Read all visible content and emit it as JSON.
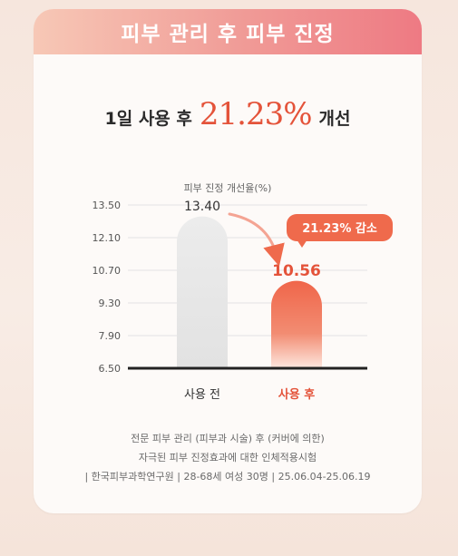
{
  "banner": {
    "title": "피부 관리 후 피부 진정"
  },
  "headline": {
    "prefix": "1일 사용 후",
    "value": "21.23%",
    "suffix": "개선"
  },
  "colors": {
    "accent": "#e4533a",
    "bar_before": "#e8e8e8",
    "bar_after": "#ef6a4c",
    "baseline": "#222222"
  },
  "chart_data": {
    "type": "bar",
    "title": "피부 진정 개선율(%)",
    "categories": [
      "사용 전",
      "사용 후"
    ],
    "values": [
      13.4,
      10.56
    ],
    "value_labels": [
      "13.40",
      "10.56"
    ],
    "ylim": [
      6.5,
      13.5
    ],
    "yticks": [
      "13.50",
      "12.10",
      "10.70",
      "9.30",
      "7.90",
      "6.50"
    ],
    "grid": true,
    "annotation": "21.23% 감소"
  },
  "footnote": {
    "line1": "전문 피부 관리 (피부과 시술) 후 (커버에 의한)",
    "line2": "자극된 피부 진정효과에 대한 인체적용시험",
    "line3": "| 한국피부과학연구원 | 28-68세 여성 30명 | 25.06.04-25.06.19"
  }
}
